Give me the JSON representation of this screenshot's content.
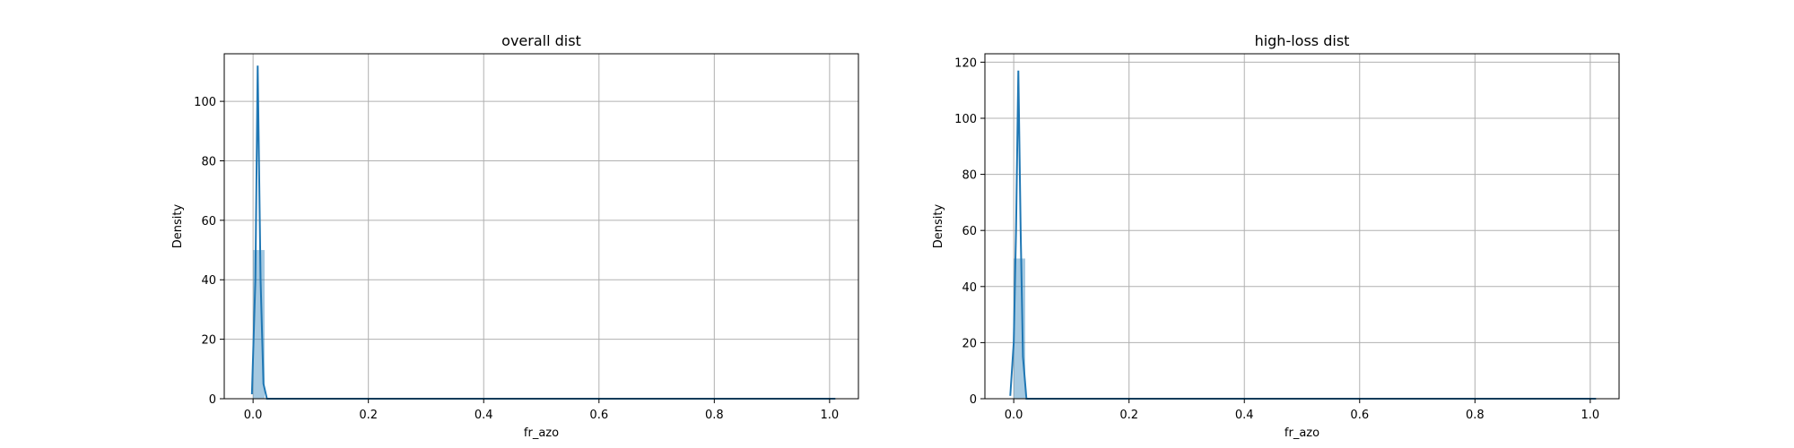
{
  "chart_data": [
    {
      "type": "histogram",
      "title": "overall dist",
      "xlabel": "fr_azo",
      "ylabel": "Density",
      "xlim": [
        -0.05,
        1.05
      ],
      "ylim": [
        0,
        116
      ],
      "xticks": [
        "0.0",
        "0.2",
        "0.4",
        "0.6",
        "0.8",
        "1.0"
      ],
      "xtick_values": [
        0.0,
        0.2,
        0.4,
        0.6,
        0.8,
        1.0
      ],
      "yticks": [
        "0",
        "20",
        "40",
        "60",
        "80",
        "100"
      ],
      "ytick_values": [
        0,
        20,
        40,
        60,
        80,
        100
      ],
      "grid": true,
      "bins": [
        {
          "x0": 0.0,
          "x1": 0.02,
          "density": 50
        },
        {
          "x0": 0.02,
          "x1": 1.0,
          "density": 0
        }
      ],
      "kde": [
        {
          "x": -0.002,
          "y": 1.5
        },
        {
          "x": 0.004,
          "y": 40
        },
        {
          "x": 0.008,
          "y": 112
        },
        {
          "x": 0.013,
          "y": 40
        },
        {
          "x": 0.018,
          "y": 5
        },
        {
          "x": 0.024,
          "y": 0
        },
        {
          "x": 0.5,
          "y": 0
        },
        {
          "x": 1.0,
          "y": 0
        },
        {
          "x": 1.01,
          "y": 0
        }
      ],
      "colors": {
        "bar": "#1f77b4",
        "bar_opacity": 0.4,
        "line": "#1f77b4"
      }
    },
    {
      "type": "histogram",
      "title": "high-loss dist",
      "xlabel": "fr_azo",
      "ylabel": "Density",
      "xlim": [
        -0.05,
        1.05
      ],
      "ylim": [
        0,
        123
      ],
      "xticks": [
        "0.0",
        "0.2",
        "0.4",
        "0.6",
        "0.8",
        "1.0"
      ],
      "xtick_values": [
        0.0,
        0.2,
        0.4,
        0.6,
        0.8,
        1.0
      ],
      "yticks": [
        "0",
        "20",
        "40",
        "60",
        "80",
        "100",
        "120"
      ],
      "ytick_values": [
        0,
        20,
        40,
        60,
        80,
        100,
        120
      ],
      "grid": true,
      "bins": [
        {
          "x0": 0.0,
          "x1": 0.02,
          "density": 50
        },
        {
          "x0": 0.02,
          "x1": 1.0,
          "density": 0
        }
      ],
      "kde": [
        {
          "x": -0.006,
          "y": 1
        },
        {
          "x": 0.0,
          "y": 20
        },
        {
          "x": 0.004,
          "y": 60
        },
        {
          "x": 0.008,
          "y": 117
        },
        {
          "x": 0.012,
          "y": 60
        },
        {
          "x": 0.016,
          "y": 15
        },
        {
          "x": 0.022,
          "y": 0
        },
        {
          "x": 0.5,
          "y": 0
        },
        {
          "x": 1.0,
          "y": 0
        },
        {
          "x": 1.01,
          "y": 0
        }
      ],
      "colors": {
        "bar": "#1f77b4",
        "bar_opacity": 0.4,
        "line": "#1f77b4"
      }
    }
  ]
}
